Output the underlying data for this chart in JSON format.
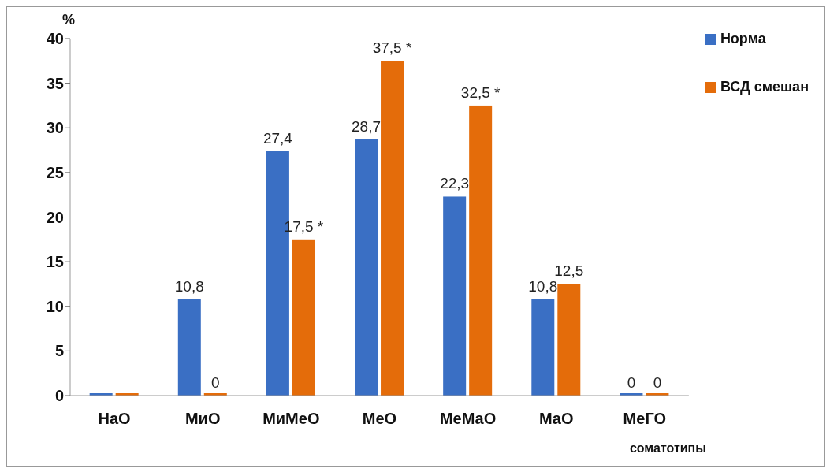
{
  "chart_data": {
    "type": "bar",
    "ylabel": "%",
    "xlabel": "соматотипы",
    "categories": [
      "НаО",
      "МиО",
      "МиМеО",
      "МеО",
      "МеМаО",
      "МаО",
      "МеГО"
    ],
    "series": [
      {
        "name": "Норма",
        "color": "#3a6fc4",
        "values": [
          0,
          10.8,
          27.4,
          28.7,
          22.3,
          10.8,
          0
        ],
        "value_labels": [
          null,
          "10,8",
          "27,4",
          "28,7",
          "22,3",
          "10,8",
          "0"
        ]
      },
      {
        "name": "ВСД смешан",
        "color": "#e46c0a",
        "values": [
          0,
          0,
          17.5,
          37.5,
          32.5,
          12.5,
          0
        ],
        "value_labels": [
          null,
          "0",
          "17,5 *",
          "37,5 *",
          "32,5 *",
          "12,5",
          "0"
        ]
      }
    ],
    "ylim": [
      0,
      40
    ],
    "yticks": [
      0,
      5,
      10,
      15,
      20,
      25,
      30,
      35,
      40
    ],
    "grid": false,
    "legend": "top right"
  }
}
